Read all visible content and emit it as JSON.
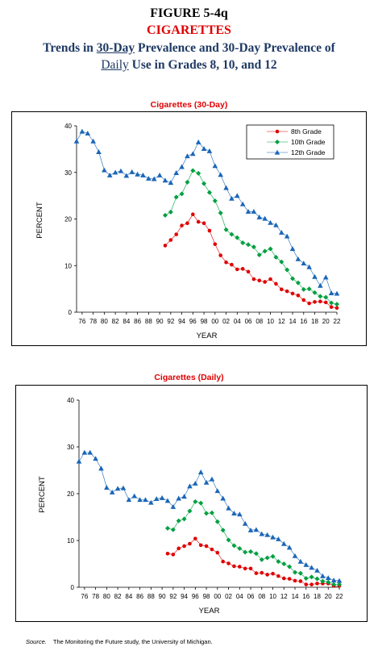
{
  "header": {
    "figure_number": "FIGURE 5-4q",
    "topic": "CIGARETTES",
    "subtitle_parts": [
      "Trends in ",
      "30-Day",
      " Prevalence and 30-Day Prevalence of"
    ],
    "subtitle_line2_parts": [
      "Daily",
      " Use in Grades 8, 10, and 12"
    ]
  },
  "source": {
    "label": "Source.",
    "text": "The Monitoring the Future study, the University of Michigan."
  },
  "colors": {
    "grade8": "#e00000",
    "grade10": "#00a040",
    "grade12": "#1a66b8",
    "title_red": "#e00000",
    "header_navy": "#1f3a64"
  },
  "chart_data": [
    {
      "type": "line",
      "title": "Cigarettes (30-Day)",
      "xlabel": "YEAR",
      "ylabel": "PERCENT",
      "ylim": [
        0,
        40
      ],
      "yticks": [
        "0",
        "10",
        "20",
        "30",
        "40"
      ],
      "xlim": [
        1975,
        2022
      ],
      "xtick_labels": [
        "76",
        "78",
        "80",
        "82",
        "84",
        "86",
        "88",
        "90",
        "92",
        "94",
        "96",
        "98",
        "00",
        "02",
        "04",
        "06",
        "08",
        "10",
        "12",
        "14",
        "16",
        "18",
        "20",
        "22"
      ],
      "grid": false,
      "legend_position": "top-right",
      "series": [
        {
          "name": "8th Grade",
          "marker": "circle",
          "x": [
            1991,
            1992,
            1993,
            1994,
            1995,
            1996,
            1997,
            1998,
            1999,
            2000,
            2001,
            2002,
            2003,
            2004,
            2005,
            2006,
            2007,
            2008,
            2009,
            2010,
            2011,
            2012,
            2013,
            2014,
            2015,
            2016,
            2017,
            2018,
            2019,
            2020,
            2021,
            2022
          ],
          "values": [
            14.3,
            15.5,
            16.7,
            18.6,
            19.1,
            21.0,
            19.4,
            19.1,
            17.5,
            14.6,
            12.2,
            10.7,
            10.2,
            9.2,
            9.3,
            8.7,
            7.1,
            6.8,
            6.5,
            7.1,
            6.1,
            4.9,
            4.5,
            4.0,
            3.6,
            2.6,
            1.9,
            2.2,
            2.3,
            2.1,
            1.1,
            0.9
          ]
        },
        {
          "name": "10th Grade",
          "marker": "diamond",
          "x": [
            1991,
            1992,
            1993,
            1994,
            1995,
            1996,
            1997,
            1998,
            1999,
            2000,
            2001,
            2002,
            2003,
            2004,
            2005,
            2006,
            2007,
            2008,
            2009,
            2010,
            2011,
            2012,
            2013,
            2014,
            2015,
            2016,
            2017,
            2018,
            2019,
            2020,
            2021,
            2022
          ],
          "values": [
            20.8,
            21.5,
            24.7,
            25.4,
            27.9,
            30.4,
            29.8,
            27.6,
            25.7,
            23.9,
            21.3,
            17.7,
            16.7,
            16.0,
            14.9,
            14.5,
            14.0,
            12.3,
            13.1,
            13.6,
            11.8,
            10.8,
            9.1,
            7.2,
            6.3,
            4.9,
            5.0,
            4.2,
            3.4,
            3.2,
            2.0,
            1.7
          ]
        },
        {
          "name": "12th Grade",
          "marker": "triangle",
          "x": [
            1975,
            1976,
            1977,
            1978,
            1979,
            1980,
            1981,
            1982,
            1983,
            1984,
            1985,
            1986,
            1987,
            1988,
            1989,
            1990,
            1991,
            1992,
            1993,
            1994,
            1995,
            1996,
            1997,
            1998,
            1999,
            2000,
            2001,
            2002,
            2003,
            2004,
            2005,
            2006,
            2007,
            2008,
            2009,
            2010,
            2011,
            2012,
            2013,
            2014,
            2015,
            2016,
            2017,
            2018,
            2019,
            2020,
            2021,
            2022
          ],
          "values": [
            36.7,
            38.8,
            38.4,
            36.7,
            34.4,
            30.5,
            29.4,
            30.0,
            30.3,
            29.3,
            30.1,
            29.6,
            29.4,
            28.7,
            28.6,
            29.4,
            28.3,
            27.8,
            29.9,
            31.2,
            33.5,
            34.0,
            36.5,
            35.1,
            34.6,
            31.4,
            29.5,
            26.7,
            24.4,
            25.0,
            23.2,
            21.6,
            21.6,
            20.4,
            20.1,
            19.2,
            18.7,
            17.1,
            16.3,
            13.6,
            11.4,
            10.5,
            9.7,
            7.6,
            5.7,
            7.5,
            4.1,
            4.0
          ]
        }
      ]
    },
    {
      "type": "line",
      "title": "Cigarettes (Daily)",
      "xlabel": "YEAR",
      "ylabel": "PERCENT",
      "ylim": [
        0,
        40
      ],
      "yticks": [
        "0",
        "10",
        "20",
        "30",
        "40"
      ],
      "xlim": [
        1975,
        2022
      ],
      "xtick_labels": [
        "76",
        "78",
        "80",
        "82",
        "84",
        "86",
        "88",
        "90",
        "92",
        "94",
        "96",
        "98",
        "00",
        "02",
        "04",
        "06",
        "08",
        "10",
        "12",
        "14",
        "16",
        "18",
        "20",
        "22"
      ],
      "grid": false,
      "series": [
        {
          "name": "8th Grade",
          "marker": "circle",
          "x": [
            1991,
            1992,
            1993,
            1994,
            1995,
            1996,
            1997,
            1998,
            1999,
            2000,
            2001,
            2002,
            2003,
            2004,
            2005,
            2006,
            2007,
            2008,
            2009,
            2010,
            2011,
            2012,
            2013,
            2014,
            2015,
            2016,
            2017,
            2018,
            2019,
            2020,
            2021,
            2022
          ],
          "values": [
            7.2,
            7.0,
            8.3,
            8.8,
            9.3,
            10.4,
            9.0,
            8.8,
            8.1,
            7.4,
            5.5,
            5.1,
            4.5,
            4.4,
            4.0,
            4.0,
            3.0,
            3.1,
            2.7,
            2.9,
            2.4,
            1.9,
            1.8,
            1.4,
            1.3,
            0.6,
            0.6,
            0.8,
            0.8,
            0.8,
            0.3,
            0.3
          ]
        },
        {
          "name": "10th Grade",
          "marker": "diamond",
          "x": [
            1991,
            1992,
            1993,
            1994,
            1995,
            1996,
            1997,
            1998,
            1999,
            2000,
            2001,
            2002,
            2003,
            2004,
            2005,
            2006,
            2007,
            2008,
            2009,
            2010,
            2011,
            2012,
            2013,
            2014,
            2015,
            2016,
            2017,
            2018,
            2019,
            2020,
            2021,
            2022
          ],
          "values": [
            12.6,
            12.3,
            14.2,
            14.6,
            16.3,
            18.3,
            18.0,
            15.8,
            15.9,
            14.0,
            12.2,
            10.1,
            8.9,
            8.3,
            7.5,
            7.6,
            7.2,
            5.9,
            6.3,
            6.6,
            5.5,
            5.0,
            4.4,
            3.2,
            3.0,
            1.9,
            2.2,
            1.8,
            1.3,
            1.1,
            0.6,
            0.6
          ]
        },
        {
          "name": "12th Grade",
          "marker": "triangle",
          "x": [
            1975,
            1976,
            1977,
            1978,
            1979,
            1980,
            1981,
            1982,
            1983,
            1984,
            1985,
            1986,
            1987,
            1988,
            1989,
            1990,
            1991,
            1992,
            1993,
            1994,
            1995,
            1996,
            1997,
            1998,
            1999,
            2000,
            2001,
            2002,
            2003,
            2004,
            2005,
            2006,
            2007,
            2008,
            2009,
            2010,
            2011,
            2012,
            2013,
            2014,
            2015,
            2016,
            2017,
            2018,
            2019,
            2020,
            2021,
            2022
          ],
          "values": [
            26.9,
            28.8,
            28.8,
            27.5,
            25.4,
            21.3,
            20.3,
            21.1,
            21.2,
            18.7,
            19.5,
            18.7,
            18.7,
            18.1,
            18.9,
            19.1,
            18.5,
            17.2,
            19.0,
            19.4,
            21.6,
            22.2,
            24.6,
            22.4,
            23.1,
            20.6,
            19.0,
            16.9,
            15.8,
            15.6,
            13.6,
            12.2,
            12.3,
            11.4,
            11.2,
            10.7,
            10.3,
            9.3,
            8.5,
            6.7,
            5.5,
            4.8,
            4.2,
            3.6,
            2.4,
            2.0,
            1.5,
            1.4
          ]
        }
      ]
    }
  ]
}
